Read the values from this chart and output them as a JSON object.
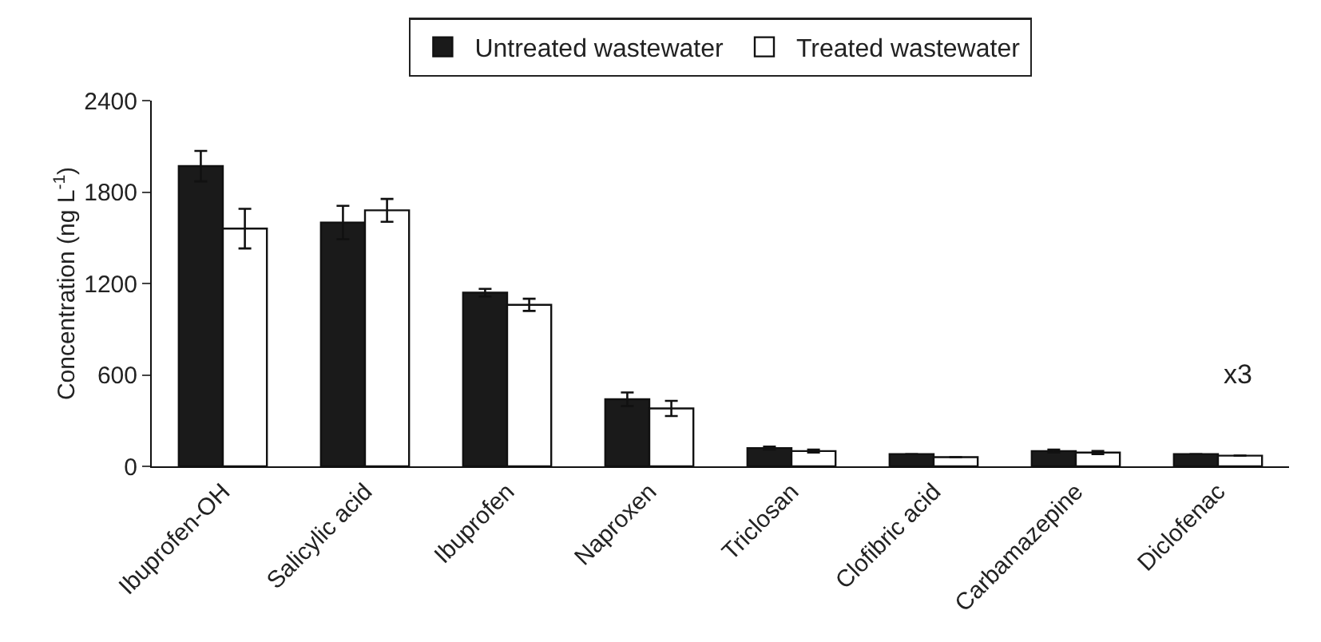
{
  "chart_data": {
    "type": "bar",
    "ylabel": "Concentration (ng L$^{-1}$)",
    "categories": [
      "Ibuprofen-OH",
      "Salicylic acid",
      "Ibuprofen",
      "Naproxen",
      "Triclosan",
      "Clofibric acid",
      "Carbamazepine",
      "Diclofenac"
    ],
    "series": [
      {
        "name": "Untreated wastewater",
        "color": "#1a1a1a",
        "values": [
          1970,
          1600,
          1140,
          440,
          120,
          80,
          100,
          80
        ],
        "errors": [
          100,
          110,
          25,
          45,
          10,
          null,
          10,
          null
        ]
      },
      {
        "name": "Treated wastewater",
        "color": "#ffffff",
        "values": [
          1560,
          1680,
          1060,
          380,
          100,
          60,
          90,
          70
        ],
        "errors": [
          130,
          75,
          40,
          50,
          10,
          null,
          10,
          null
        ]
      }
    ],
    "ylim": [
      0,
      2400
    ],
    "yticks": [
      0,
      600,
      1200,
      1800,
      2400
    ],
    "grid": false,
    "legend": "top",
    "annotations": [
      "x3"
    ]
  }
}
